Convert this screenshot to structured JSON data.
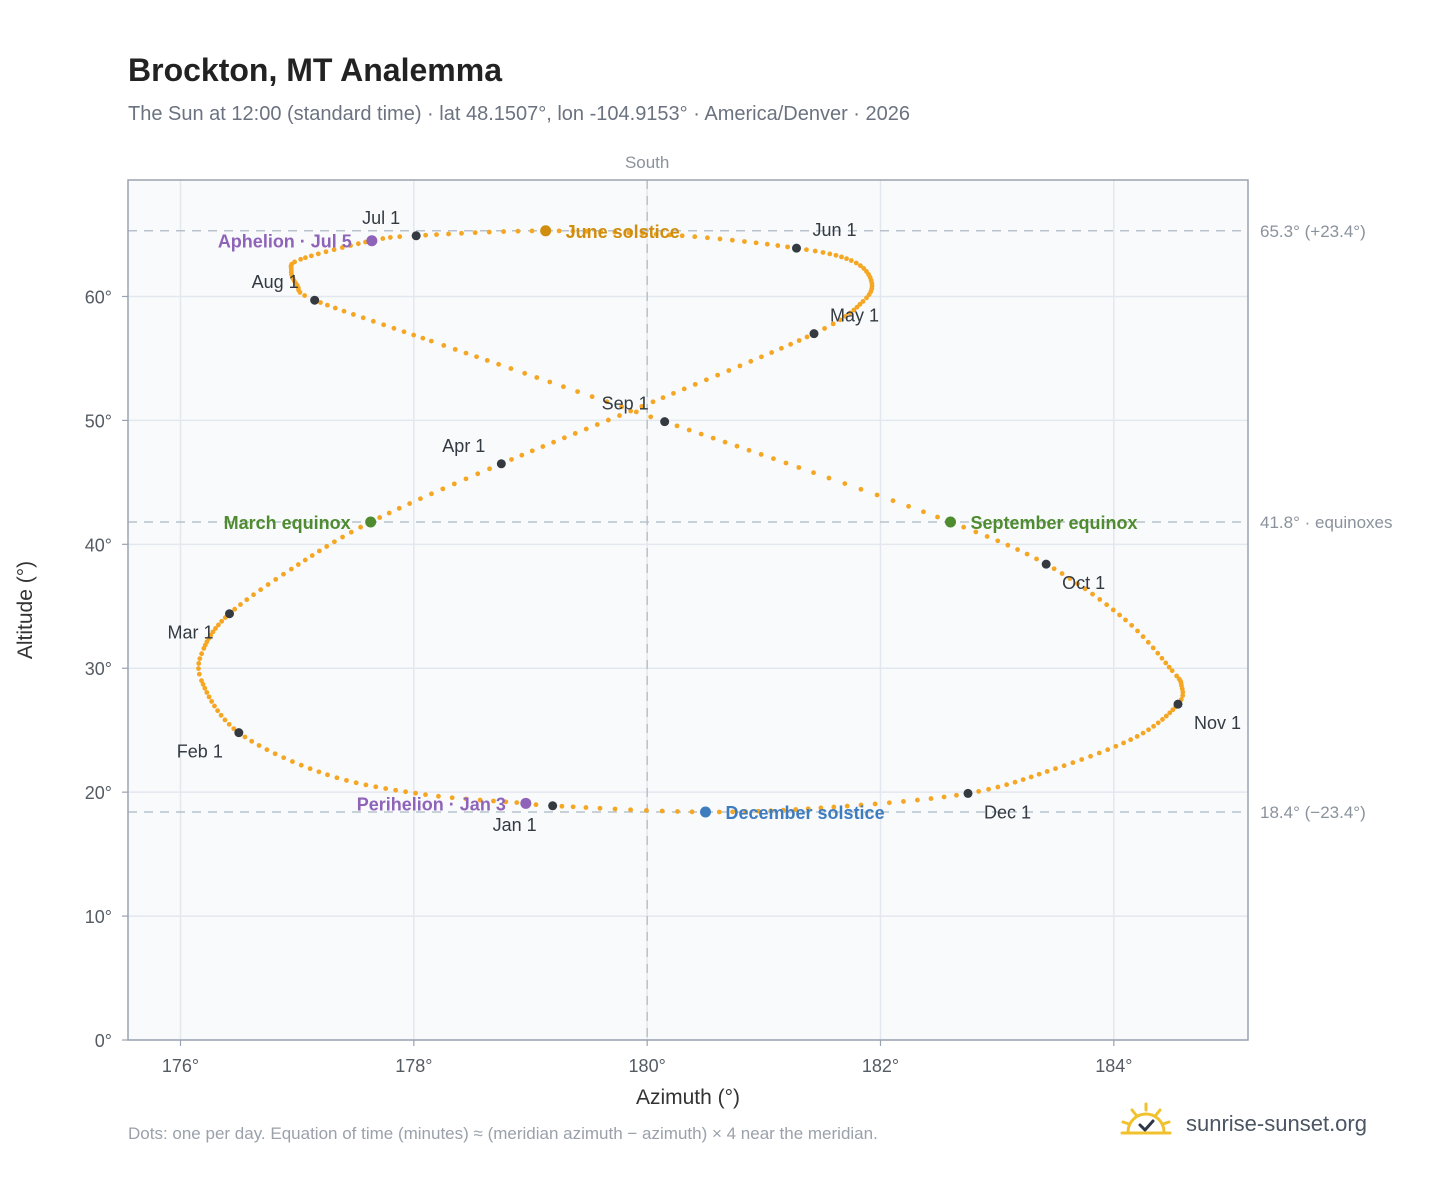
{
  "page": {
    "title": "Brockton, MT Analemma",
    "subtitle": "The Sun at 12:00 (standard time) · lat 48.1507°, lon -104.9153° · America/Denver · 2026",
    "footnote": "Dots: one per day. Equation of time (minutes) ≈ (meridian azimuth − azimuth) × 4 near the meridian.",
    "brand": "sunrise-sunset.org",
    "brand_icon": "sun-check-icon"
  },
  "chart_data": {
    "type": "scatter",
    "xlabel": "Azimuth (°)",
    "ylabel": "Altitude (°)",
    "xlim": [
      175.55,
      185.15
    ],
    "ylim": [
      0,
      69.4
    ],
    "xticks": [
      176,
      178,
      180,
      182,
      184
    ],
    "xtick_labels": [
      "176°",
      "178°",
      "180°",
      "182°",
      "184°"
    ],
    "yticks": [
      0,
      10,
      20,
      30,
      40,
      50,
      60
    ],
    "ytick_labels": [
      "0°",
      "10°",
      "20°",
      "30°",
      "40°",
      "50°",
      "60°"
    ],
    "grid": true,
    "meridian": {
      "x": 180,
      "label": "South"
    },
    "reference_lines": [
      {
        "y": 65.3,
        "label": "65.3° (+23.4°)"
      },
      {
        "y": 41.8,
        "label": "41.8° · equinoxes"
      },
      {
        "y": 18.4,
        "label": "18.4° (−23.4°)"
      }
    ],
    "series": [
      {
        "style": "daily-dots",
        "color": "#f5a623",
        "waypoints": [
          {
            "day": 1,
            "x": 179.19,
            "y": 18.9
          },
          {
            "day": 3,
            "x": 178.96,
            "y": 19.1
          },
          {
            "day": 11,
            "x": 178.1,
            "y": 19.8
          },
          {
            "day": 21,
            "x": 177.26,
            "y": 21.4
          },
          {
            "day": 32,
            "x": 176.5,
            "y": 24.8
          },
          {
            "day": 44,
            "x": 176.18,
            "y": 29.0
          },
          {
            "day": 50,
            "x": 176.2,
            "y": 31.6
          },
          {
            "day": 60,
            "x": 176.42,
            "y": 34.4
          },
          {
            "day": 69,
            "x": 176.95,
            "y": 38.0
          },
          {
            "day": 79,
            "x": 177.63,
            "y": 41.8
          },
          {
            "day": 91,
            "x": 178.75,
            "y": 46.5
          },
          {
            "day": 105,
            "x": 180.05,
            "y": 51.5
          },
          {
            "day": 121,
            "x": 181.43,
            "y": 57.0
          },
          {
            "day": 130,
            "x": 181.85,
            "y": 59.6
          },
          {
            "day": 137,
            "x": 181.92,
            "y": 61.3
          },
          {
            "day": 144,
            "x": 181.75,
            "y": 62.9
          },
          {
            "day": 152,
            "x": 181.28,
            "y": 63.9
          },
          {
            "day": 162,
            "x": 180.3,
            "y": 64.9
          },
          {
            "day": 172,
            "x": 179.13,
            "y": 65.3
          },
          {
            "day": 182,
            "x": 178.02,
            "y": 64.9
          },
          {
            "day": 186,
            "x": 177.64,
            "y": 64.5
          },
          {
            "day": 196,
            "x": 177.03,
            "y": 63.0
          },
          {
            "day": 201,
            "x": 176.95,
            "y": 62.1
          },
          {
            "day": 208,
            "x": 177.0,
            "y": 60.9
          },
          {
            "day": 213,
            "x": 177.15,
            "y": 59.7
          },
          {
            "day": 226,
            "x": 178.15,
            "y": 56.4
          },
          {
            "day": 234,
            "x": 178.95,
            "y": 53.8
          },
          {
            "day": 244,
            "x": 180.15,
            "y": 49.9
          },
          {
            "day": 255,
            "x": 181.3,
            "y": 46.2
          },
          {
            "day": 265,
            "x": 182.6,
            "y": 41.8
          },
          {
            "day": 274,
            "x": 183.42,
            "y": 38.4
          },
          {
            "day": 285,
            "x": 184.1,
            "y": 33.9
          },
          {
            "day": 295,
            "x": 184.5,
            "y": 29.8
          },
          {
            "day": 300,
            "x": 184.58,
            "y": 28.6
          },
          {
            "day": 305,
            "x": 184.55,
            "y": 27.1
          },
          {
            "day": 315,
            "x": 184.2,
            "y": 24.5
          },
          {
            "day": 325,
            "x": 183.5,
            "y": 21.9
          },
          {
            "day": 335,
            "x": 182.75,
            "y": 19.9
          },
          {
            "day": 345,
            "x": 181.6,
            "y": 18.8
          },
          {
            "day": 355,
            "x": 180.5,
            "y": 18.4
          },
          {
            "day": 366,
            "x": 179.19,
            "y": 18.9
          }
        ]
      }
    ],
    "month_markers": [
      {
        "label": "Jan 1",
        "x": 179.19,
        "y": 18.9,
        "pos": "below-left"
      },
      {
        "label": "Feb 1",
        "x": 176.5,
        "y": 24.8,
        "pos": "below-left"
      },
      {
        "label": "Mar 1",
        "x": 176.42,
        "y": 34.4,
        "pos": "below-left"
      },
      {
        "label": "Apr 1",
        "x": 178.75,
        "y": 46.5,
        "pos": "above-left"
      },
      {
        "label": "May 1",
        "x": 181.43,
        "y": 57.0,
        "pos": "above-right"
      },
      {
        "label": "Jun 1",
        "x": 181.28,
        "y": 63.9,
        "pos": "above-right"
      },
      {
        "label": "Jul 1",
        "x": 178.02,
        "y": 64.9,
        "pos": "above-left"
      },
      {
        "label": "Aug 1",
        "x": 177.15,
        "y": 59.7,
        "pos": "above-left"
      },
      {
        "label": "Sep 1",
        "x": 180.15,
        "y": 49.9,
        "pos": "above-left"
      },
      {
        "label": "Oct 1",
        "x": 183.42,
        "y": 38.4,
        "pos": "below-right"
      },
      {
        "label": "Nov 1",
        "x": 184.55,
        "y": 27.1,
        "pos": "below-right"
      },
      {
        "label": "Dec 1",
        "x": 182.75,
        "y": 19.9,
        "pos": "below-right"
      }
    ],
    "events": [
      {
        "label": "June solstice",
        "x": 179.13,
        "y": 65.3,
        "color": "#d18e0e",
        "pos": "right"
      },
      {
        "label": "Aphelion · Jul 5",
        "x": 177.64,
        "y": 64.5,
        "color": "#8e63b8",
        "pos": "left"
      },
      {
        "label": "March equinox",
        "x": 177.63,
        "y": 41.8,
        "color": "#4e8c2f",
        "pos": "left"
      },
      {
        "label": "September equinox",
        "x": 182.6,
        "y": 41.8,
        "color": "#4e8c2f",
        "pos": "right"
      },
      {
        "label": "Perihelion · Jan 3",
        "x": 178.96,
        "y": 19.1,
        "color": "#8e63b8",
        "pos": "left"
      },
      {
        "label": "December solstice",
        "x": 180.5,
        "y": 18.4,
        "color": "#3e7cc0",
        "pos": "right"
      }
    ],
    "colors": {
      "curve": "#f5a623",
      "month_marker": "#343a40",
      "plot_background": "#f8fafc",
      "frame": "#9aa3b0"
    }
  }
}
